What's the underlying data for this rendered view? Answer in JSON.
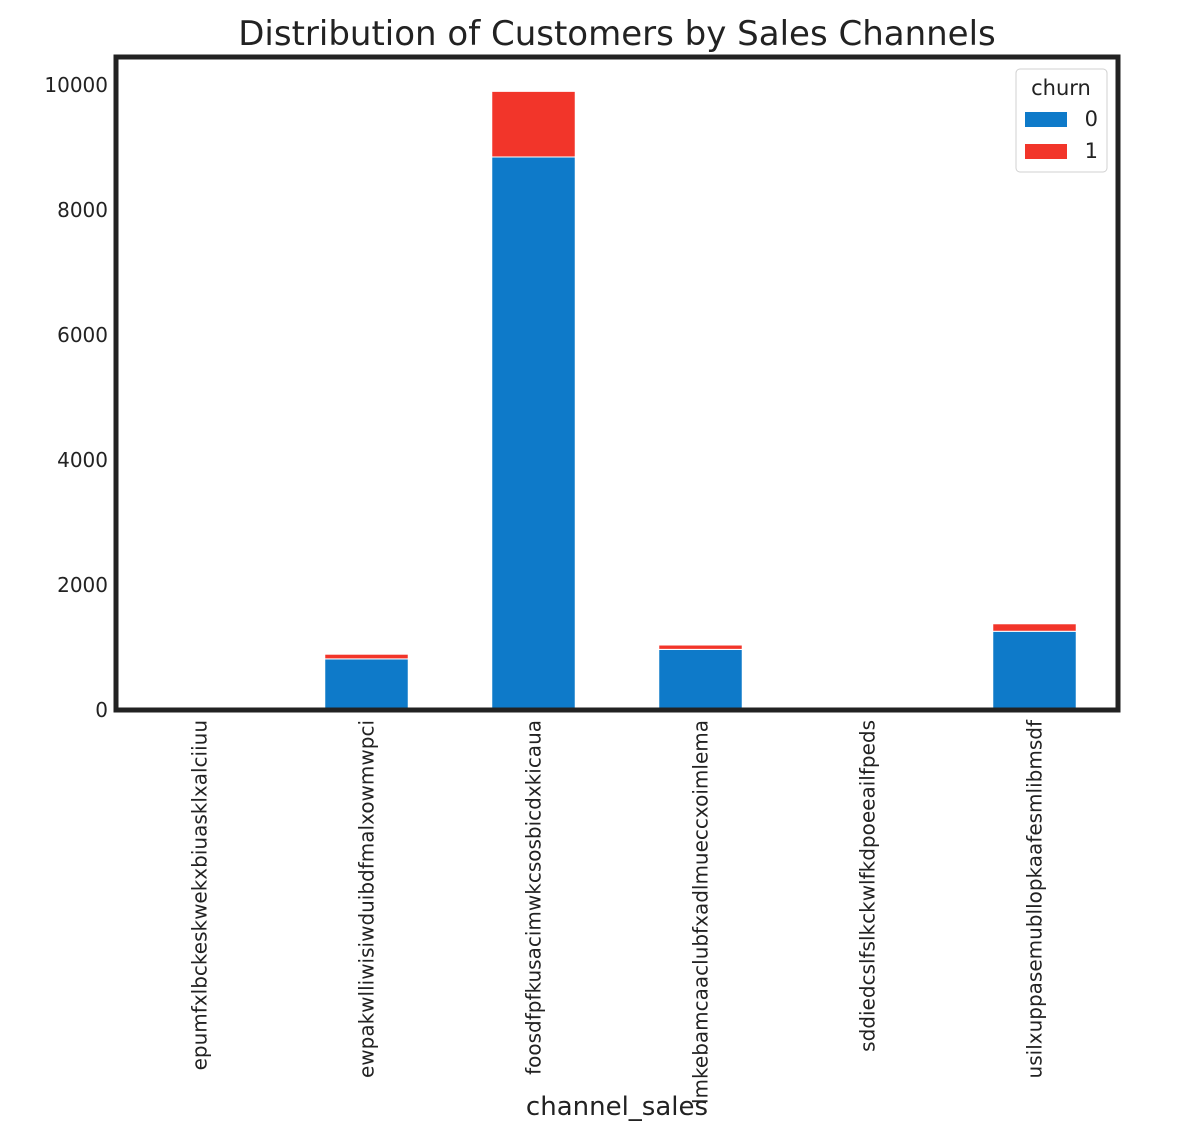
{
  "chart_data": {
    "type": "bar",
    "stacked": true,
    "title": "Distribution of Customers by Sales Channels",
    "xlabel": "channel_sales",
    "ylabel": "",
    "categories": [
      "epumfxlbckeskwekxbiuasklxalciiuu",
      "ewpakwlliwisiwduibdfmalxowmwpci",
      "foosdfpfkusacimwkcsosbicdxkicaua",
      "lmkebamcaaclubfxadlmueccxoimlema",
      "sddiedcslfslkckwlfkdpoeeailfpeds",
      "usilxuppasemubllopkaafesmlibmsdf"
    ],
    "series": [
      {
        "name": "0",
        "color": "#0e7ac9",
        "values": [
          3,
          818,
          8850,
          970,
          11,
          1260
        ]
      },
      {
        "name": "1",
        "color": "#f2352a",
        "values": [
          0,
          75,
          1050,
          70,
          0,
          120
        ]
      }
    ],
    "legend_title": "churn",
    "legend_position": "top-right",
    "ylim": [
      0,
      10450
    ],
    "yticks": [
      0,
      2000,
      4000,
      6000,
      8000,
      10000
    ],
    "grid": false
  }
}
